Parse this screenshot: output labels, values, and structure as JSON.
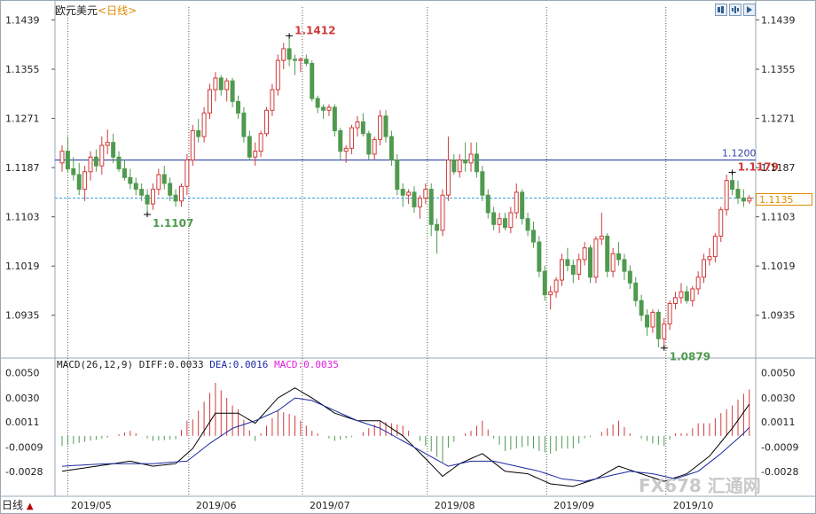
{
  "header": {
    "instrument": "欧元美元",
    "period_tag": "<日线>"
  },
  "toolbar": {
    "icons": [
      "zoom-in-icon",
      "zoom-out-icon",
      "play-icon"
    ]
  },
  "period_label": "日线",
  "last_price": "1.1135",
  "watermark": "FX678 汇通网",
  "colors": {
    "up": "#d03a3a",
    "down": "#4f9a4f",
    "hline": "#3344aa",
    "dashed": "#3aa0e0",
    "dif": "#000000",
    "dea": "#1a2aa0",
    "macd_label": "#e020e0",
    "accent": "#e08a00"
  },
  "chart_data": [
    {
      "type": "candlestick",
      "title": "欧元美元",
      "y_ticks": [
        "1.1439",
        "1.1355",
        "1.1271",
        "1.1187",
        "1.1103",
        "1.1019",
        "1.0935"
      ],
      "ylim": [
        1.0865,
        1.1461
      ],
      "x_ticks": [
        "2019/05",
        "2019/06",
        "2019/07",
        "2019/08",
        "2019/09",
        "2019/10"
      ],
      "horizontal_lines": [
        {
          "value": 1.12,
          "label": "1.1200",
          "style": "solid"
        },
        {
          "value": 1.1135,
          "style": "dashed"
        }
      ],
      "annotations": [
        {
          "text": "1.1412",
          "value": 1.1412,
          "kind": "high"
        },
        {
          "text": "1.1107",
          "value": 1.1107,
          "kind": "low"
        },
        {
          "text": "1.0879",
          "value": 1.0879,
          "kind": "low"
        },
        {
          "text": "1.1179",
          "value": 1.1179,
          "kind": "high"
        }
      ],
      "grid": "vertical dotted at month boundaries",
      "candles": [
        [
          1.1195,
          1.1225,
          1.118,
          1.1215
        ],
        [
          1.1215,
          1.124,
          1.118,
          1.1185
        ],
        [
          1.1185,
          1.1205,
          1.1165,
          1.1175
        ],
        [
          1.1175,
          1.1195,
          1.114,
          1.115
        ],
        [
          1.115,
          1.119,
          1.113,
          1.118
        ],
        [
          1.118,
          1.1215,
          1.1165,
          1.1205
        ],
        [
          1.1205,
          1.1218,
          1.118,
          1.119
        ],
        [
          1.119,
          1.124,
          1.1175,
          1.1225
        ],
        [
          1.1225,
          1.1252,
          1.121,
          1.123
        ],
        [
          1.123,
          1.1245,
          1.1195,
          1.1205
        ],
        [
          1.1205,
          1.1215,
          1.118,
          1.1185
        ],
        [
          1.1185,
          1.12,
          1.1165,
          1.117
        ],
        [
          1.117,
          1.1185,
          1.115,
          1.116
        ],
        [
          1.116,
          1.117,
          1.114,
          1.115
        ],
        [
          1.115,
          1.116,
          1.113,
          1.114
        ],
        [
          1.114,
          1.115,
          1.1107,
          1.1125
        ],
        [
          1.1125,
          1.116,
          1.1115,
          1.115
        ],
        [
          1.115,
          1.1185,
          1.114,
          1.1175
        ],
        [
          1.1175,
          1.119,
          1.115,
          1.116
        ],
        [
          1.116,
          1.117,
          1.113,
          1.114
        ],
        [
          1.114,
          1.115,
          1.112,
          1.113
        ],
        [
          1.113,
          1.116,
          1.112,
          1.1155
        ],
        [
          1.1155,
          1.121,
          1.114,
          1.12
        ],
        [
          1.12,
          1.126,
          1.119,
          1.125
        ],
        [
          1.125,
          1.127,
          1.123,
          1.124
        ],
        [
          1.124,
          1.129,
          1.123,
          1.128
        ],
        [
          1.128,
          1.133,
          1.127,
          1.132
        ],
        [
          1.132,
          1.135,
          1.13,
          1.134
        ],
        [
          1.134,
          1.1345,
          1.131,
          1.132
        ],
        [
          1.132,
          1.134,
          1.13,
          1.1335
        ],
        [
          1.1335,
          1.134,
          1.129,
          1.13
        ],
        [
          1.13,
          1.131,
          1.127,
          1.128
        ],
        [
          1.128,
          1.129,
          1.123,
          1.124
        ],
        [
          1.124,
          1.125,
          1.12,
          1.1205
        ],
        [
          1.1205,
          1.123,
          1.119,
          1.1215
        ],
        [
          1.1215,
          1.125,
          1.1205,
          1.1245
        ],
        [
          1.1245,
          1.129,
          1.124,
          1.1285
        ],
        [
          1.1285,
          1.133,
          1.1275,
          1.132
        ],
        [
          1.132,
          1.138,
          1.131,
          1.137
        ],
        [
          1.137,
          1.14,
          1.1355,
          1.139
        ],
        [
          1.139,
          1.1412,
          1.136,
          1.1372
        ],
        [
          1.1372,
          1.138,
          1.1345,
          1.137
        ],
        [
          1.137,
          1.1375,
          1.135,
          1.1372
        ],
        [
          1.1372,
          1.138,
          1.136,
          1.1365
        ],
        [
          1.1365,
          1.137,
          1.13,
          1.1305
        ],
        [
          1.1305,
          1.131,
          1.128,
          1.129
        ],
        [
          1.129,
          1.1295,
          1.127,
          1.1285
        ],
        [
          1.1285,
          1.1295,
          1.1275,
          1.129
        ],
        [
          1.129,
          1.1295,
          1.124,
          1.125
        ],
        [
          1.125,
          1.1255,
          1.12,
          1.1215
        ],
        [
          1.1215,
          1.1225,
          1.1195,
          1.122
        ],
        [
          1.122,
          1.126,
          1.121,
          1.1255
        ],
        [
          1.1255,
          1.1275,
          1.124,
          1.1265
        ],
        [
          1.1265,
          1.128,
          1.124,
          1.1245
        ],
        [
          1.1245,
          1.125,
          1.12,
          1.121
        ],
        [
          1.121,
          1.124,
          1.12,
          1.1235
        ],
        [
          1.1235,
          1.1285,
          1.1225,
          1.1275
        ],
        [
          1.1275,
          1.1285,
          1.123,
          1.124
        ],
        [
          1.124,
          1.125,
          1.119,
          1.12
        ],
        [
          1.12,
          1.121,
          1.114,
          1.115
        ],
        [
          1.115,
          1.116,
          1.112,
          1.114
        ],
        [
          1.114,
          1.115,
          1.1125,
          1.1145
        ],
        [
          1.1145,
          1.1155,
          1.111,
          1.112
        ],
        [
          1.112,
          1.114,
          1.11,
          1.1135
        ],
        [
          1.1135,
          1.116,
          1.1125,
          1.115
        ],
        [
          1.115,
          1.116,
          1.107,
          1.109
        ],
        [
          1.109,
          1.11,
          1.104,
          1.108
        ],
        [
          1.108,
          1.115,
          1.107,
          1.114
        ],
        [
          1.114,
          1.124,
          1.113,
          1.12
        ],
        [
          1.12,
          1.121,
          1.1175,
          1.118
        ],
        [
          1.118,
          1.121,
          1.117,
          1.12
        ],
        [
          1.12,
          1.123,
          1.118,
          1.1195
        ],
        [
          1.1195,
          1.123,
          1.118,
          1.121
        ],
        [
          1.121,
          1.123,
          1.117,
          1.118
        ],
        [
          1.118,
          1.119,
          1.113,
          1.114
        ],
        [
          1.114,
          1.115,
          1.11,
          1.111
        ],
        [
          1.111,
          1.112,
          1.108,
          1.109
        ],
        [
          1.109,
          1.111,
          1.1075,
          1.11
        ],
        [
          1.11,
          1.111,
          1.108,
          1.1085
        ],
        [
          1.1085,
          1.112,
          1.1075,
          1.111
        ],
        [
          1.111,
          1.116,
          1.11,
          1.1145
        ],
        [
          1.1145,
          1.115,
          1.109,
          1.11
        ],
        [
          1.11,
          1.111,
          1.107,
          1.108
        ],
        [
          1.108,
          1.1095,
          1.105,
          1.106
        ],
        [
          1.106,
          1.107,
          1.1,
          1.101
        ],
        [
          1.101,
          1.102,
          1.096,
          1.097
        ],
        [
          1.097,
          1.0985,
          1.0945,
          1.0975
        ],
        [
          1.0975,
          1.1,
          1.0965,
          1.0995
        ],
        [
          1.0995,
          1.104,
          1.0985,
          1.103
        ],
        [
          1.103,
          1.105,
          1.101,
          1.102
        ],
        [
          1.102,
          1.103,
          1.099,
          1.1005
        ],
        [
          1.1005,
          1.104,
          1.0995,
          1.103
        ],
        [
          1.103,
          1.106,
          1.102,
          1.105
        ],
        [
          1.105,
          1.1055,
          1.099,
          1.1
        ],
        [
          1.1,
          1.107,
          1.099,
          1.1065
        ],
        [
          1.1065,
          1.111,
          1.1055,
          1.107
        ],
        [
          1.107,
          1.1075,
          1.1,
          1.101
        ],
        [
          1.101,
          1.105,
          1.1,
          1.104
        ],
        [
          1.104,
          1.106,
          1.102,
          1.103
        ],
        [
          1.103,
          1.104,
          1.0995,
          1.101
        ],
        [
          1.101,
          1.102,
          1.098,
          1.099
        ],
        [
          1.099,
          1.1,
          1.095,
          1.096
        ],
        [
          1.096,
          1.097,
          1.0925,
          1.0935
        ],
        [
          1.0935,
          1.0945,
          1.09,
          1.0915
        ],
        [
          1.0915,
          1.0945,
          1.0905,
          1.094
        ],
        [
          1.094,
          1.0945,
          1.088,
          1.0895
        ],
        [
          1.0895,
          1.093,
          1.0879,
          1.092
        ],
        [
          1.092,
          1.096,
          1.091,
          1.0955
        ],
        [
          1.0955,
          1.0975,
          1.0945,
          1.0965
        ],
        [
          1.0965,
          1.099,
          1.0955,
          1.0975
        ],
        [
          1.0975,
          1.0985,
          1.0955,
          1.096
        ],
        [
          1.096,
          1.0985,
          1.095,
          1.098
        ],
        [
          1.098,
          1.101,
          1.097,
          1.1
        ],
        [
          1.1,
          1.104,
          1.099,
          1.103
        ],
        [
          1.103,
          1.105,
          1.102,
          1.1035
        ],
        [
          1.1035,
          1.1075,
          1.1025,
          1.107
        ],
        [
          1.107,
          1.112,
          1.106,
          1.1115
        ],
        [
          1.1115,
          1.1175,
          1.1105,
          1.1165
        ],
        [
          1.1165,
          1.1179,
          1.114,
          1.115
        ],
        [
          1.115,
          1.1165,
          1.1125,
          1.1135
        ],
        [
          1.1135,
          1.115,
          1.112,
          1.113
        ],
        [
          1.113,
          1.114,
          1.1125,
          1.1135
        ]
      ]
    },
    {
      "type": "macd",
      "legend": [
        "MACD(26,12,9)",
        "DIFF:0.0033",
        "DEA:0.0016",
        "MACD:0.0035"
      ],
      "params": "MACD(26,12,9)",
      "diff": 0.0033,
      "dea": 0.0016,
      "macd": 0.0035,
      "y_ticks": [
        "0.0050",
        "0.0030",
        "0.0011",
        "-0.0009",
        "-0.0028"
      ],
      "ylim": [
        -0.0045,
        0.0056
      ],
      "keyframes_diff": [
        [
          0,
          -0.0028
        ],
        [
          6,
          -0.0024
        ],
        [
          12,
          -0.002
        ],
        [
          16,
          -0.0024
        ],
        [
          20,
          -0.0022
        ],
        [
          23,
          -0.001
        ],
        [
          27,
          0.0018
        ],
        [
          31,
          0.0018
        ],
        [
          34,
          0.001
        ],
        [
          38,
          0.003
        ],
        [
          41,
          0.0038
        ],
        [
          44,
          0.003
        ],
        [
          48,
          0.0018
        ],
        [
          52,
          0.0012
        ],
        [
          56,
          0.0012
        ],
        [
          60,
          0.0
        ],
        [
          64,
          -0.0018
        ],
        [
          67,
          -0.0032
        ],
        [
          70,
          -0.0022
        ],
        [
          74,
          -0.0014
        ],
        [
          78,
          -0.0028
        ],
        [
          82,
          -0.003
        ],
        [
          86,
          -0.0038
        ],
        [
          90,
          -0.004
        ],
        [
          94,
          -0.0034
        ],
        [
          98,
          -0.0024
        ],
        [
          102,
          -0.003
        ],
        [
          106,
          -0.0036
        ],
        [
          110,
          -0.003
        ],
        [
          114,
          -0.0016
        ],
        [
          118,
          0.0006
        ],
        [
          121,
          0.0025
        ],
        [
          123,
          0.0033
        ]
      ],
      "keyframes_dea": [
        [
          0,
          -0.0024
        ],
        [
          8,
          -0.0022
        ],
        [
          16,
          -0.0022
        ],
        [
          22,
          -0.002
        ],
        [
          26,
          -0.0006
        ],
        [
          30,
          0.0006
        ],
        [
          34,
          0.0012
        ],
        [
          38,
          0.002
        ],
        [
          41,
          0.003
        ],
        [
          44,
          0.0028
        ],
        [
          48,
          0.002
        ],
        [
          52,
          0.0012
        ],
        [
          56,
          0.0006
        ],
        [
          60,
          -0.0004
        ],
        [
          64,
          -0.0014
        ],
        [
          68,
          -0.0024
        ],
        [
          72,
          -0.002
        ],
        [
          76,
          -0.002
        ],
        [
          80,
          -0.0024
        ],
        [
          84,
          -0.0028
        ],
        [
          88,
          -0.0034
        ],
        [
          92,
          -0.0036
        ],
        [
          96,
          -0.0032
        ],
        [
          100,
          -0.0028
        ],
        [
          104,
          -0.003
        ],
        [
          108,
          -0.0034
        ],
        [
          112,
          -0.0028
        ],
        [
          116,
          -0.0014
        ],
        [
          120,
          0.0002
        ],
        [
          123,
          0.0016
        ]
      ]
    }
  ]
}
